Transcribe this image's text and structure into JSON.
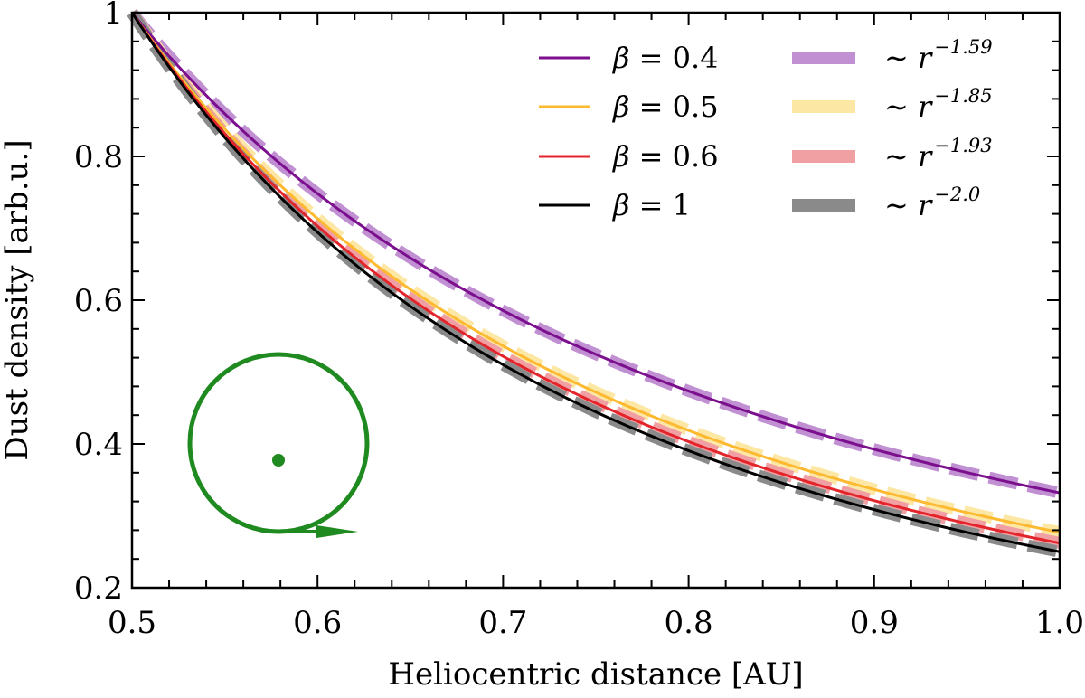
{
  "chart_data": {
    "type": "line",
    "xlabel": "Heliocentric distance [AU]",
    "ylabel": "Dust density [arb.u.]",
    "xlim": [
      0.5,
      1.0
    ],
    "ylim": [
      0.2,
      1.0
    ],
    "x_ticks": [
      "0.5",
      "0.6",
      "0.7",
      "0.8",
      "0.9",
      "1.0"
    ],
    "y_ticks": [
      "0.2",
      "0.4",
      "0.6",
      "0.8",
      "1"
    ],
    "legend_position": "top-right",
    "series": [
      {
        "name": "β = 0.4",
        "symbol": "β",
        "rest": " = 0.4",
        "color": "#7b0f8e",
        "kind": "model",
        "end_value": 0.332,
        "x": [
          0.5,
          0.6,
          0.7,
          0.8,
          0.9,
          1.0
        ],
        "values": [
          1.0,
          0.749,
          0.584,
          0.47,
          0.387,
          0.332
        ]
      },
      {
        "name": "β = 0.5",
        "symbol": "β",
        "rest": " = 0.5",
        "color": "#fdb92f",
        "kind": "model",
        "end_value": 0.277,
        "x": [
          0.5,
          0.6,
          0.7,
          0.8,
          0.9,
          1.0
        ],
        "values": [
          1.0,
          0.714,
          0.537,
          0.419,
          0.337,
          0.277
        ]
      },
      {
        "name": "β = 0.6",
        "symbol": "β",
        "rest": " = 0.6",
        "color": "#e3242b",
        "kind": "model",
        "end_value": 0.262,
        "x": [
          0.5,
          0.6,
          0.7,
          0.8,
          0.9,
          1.0
        ],
        "values": [
          1.0,
          0.704,
          0.522,
          0.403,
          0.321,
          0.262
        ]
      },
      {
        "name": "β = 1",
        "symbol": "β",
        "rest": " = 1",
        "color": "#000000",
        "kind": "model",
        "end_value": 0.25,
        "x": [
          0.5,
          0.6,
          0.7,
          0.8,
          0.9,
          1.0
        ],
        "values": [
          1.0,
          0.694,
          0.51,
          0.391,
          0.309,
          0.25
        ]
      },
      {
        "name": "∼ r^-1.59",
        "prefix": "∼ ",
        "symbol": "r",
        "exponent": "−1.59",
        "color": "#c190d2",
        "kind": "fit",
        "power": -1.59
      },
      {
        "name": "∼ r^-1.85",
        "prefix": "∼ ",
        "symbol": "r",
        "exponent": "−1.85",
        "color": "#fde7a5",
        "kind": "fit",
        "power": -1.85
      },
      {
        "name": "∼ r^-1.93",
        "prefix": "∼ ",
        "symbol": "r",
        "exponent": "−1.93",
        "color": "#f0a0a3",
        "kind": "fit",
        "power": -1.93
      },
      {
        "name": "∼ r^-2.0",
        "prefix": "∼ ",
        "symbol": "r",
        "exponent": "−2.0",
        "color": "#8a8a8a",
        "kind": "fit",
        "power": -2.0
      }
    ],
    "inset_icon": {
      "name": "orbit-icon",
      "color": "#1f8a1f"
    }
  }
}
